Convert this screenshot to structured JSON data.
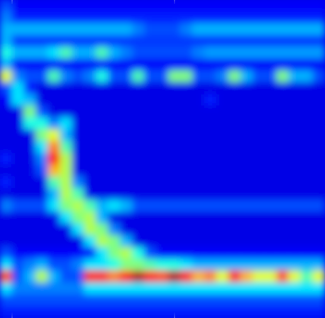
{
  "chart_data": {
    "type": "heatmap",
    "tick_labels": false,
    "xlim": [
      0,
      27
    ],
    "ylim": [
      0,
      27
    ],
    "color_range": [
      0,
      1
    ],
    "reference_lines": [
      1,
      14.5
    ],
    "cells": [
      [
        0.2,
        0.12,
        0.12,
        0.12,
        0.12,
        0.12,
        0.12,
        0.12,
        0.12,
        0.12,
        0.12,
        0.12,
        0.12,
        0.12,
        0.12,
        0.12,
        0.12,
        0.12,
        0.12,
        0.12,
        0.12,
        0.12,
        0.12,
        0.12,
        0.12,
        0.12,
        0.12
      ],
      [
        0.25,
        0.15,
        0.15,
        0.15,
        0.15,
        0.15,
        0.15,
        0.15,
        0.15,
        0.15,
        0.15,
        0.15,
        0.15,
        0.15,
        0.15,
        0.15,
        0.15,
        0.15,
        0.15,
        0.15,
        0.15,
        0.15,
        0.15,
        0.15,
        0.15,
        0.15,
        0.15
      ],
      [
        0.3,
        0.3,
        0.3,
        0.3,
        0.3,
        0.3,
        0.3,
        0.3,
        0.3,
        0.3,
        0.3,
        0.25,
        0.2,
        0.2,
        0.2,
        0.25,
        0.3,
        0.3,
        0.3,
        0.3,
        0.3,
        0.3,
        0.3,
        0.3,
        0.3,
        0.3,
        0.3
      ],
      [
        0.3,
        0.18,
        0.18,
        0.18,
        0.18,
        0.18,
        0.18,
        0.18,
        0.18,
        0.18,
        0.18,
        0.18,
        0.18,
        0.18,
        0.18,
        0.18,
        0.18,
        0.18,
        0.18,
        0.18,
        0.18,
        0.18,
        0.18,
        0.18,
        0.18,
        0.18,
        0.18
      ],
      [
        0.4,
        0.3,
        0.3,
        0.3,
        0.35,
        0.45,
        0.3,
        0.3,
        0.45,
        0.3,
        0.25,
        0.2,
        0.2,
        0.2,
        0.2,
        0.2,
        0.25,
        0.28,
        0.28,
        0.28,
        0.28,
        0.28,
        0.28,
        0.28,
        0.28,
        0.28,
        0.28
      ],
      [
        0.3,
        0.12,
        0.12,
        0.12,
        0.12,
        0.12,
        0.12,
        0.12,
        0.12,
        0.12,
        0.12,
        0.12,
        0.12,
        0.12,
        0.12,
        0.12,
        0.12,
        0.12,
        0.12,
        0.12,
        0.12,
        0.12,
        0.12,
        0.12,
        0.12,
        0.12,
        0.12
      ],
      [
        0.6,
        0.25,
        0.2,
        0.2,
        0.45,
        0.25,
        0.2,
        0.25,
        0.4,
        0.2,
        0.2,
        0.45,
        0.2,
        0.2,
        0.5,
        0.5,
        0.2,
        0.2,
        0.25,
        0.5,
        0.3,
        0.2,
        0.2,
        0.5,
        0.3,
        0.3,
        0.2
      ],
      [
        0.2,
        0.35,
        0.15,
        0.1,
        0.1,
        0.1,
        0.1,
        0.1,
        0.1,
        0.1,
        0.1,
        0.1,
        0.1,
        0.1,
        0.1,
        0.1,
        0.1,
        0.1,
        0.1,
        0.1,
        0.1,
        0.1,
        0.1,
        0.1,
        0.1,
        0.1,
        0.1
      ],
      [
        0.12,
        0.35,
        0.3,
        0.1,
        0.1,
        0.1,
        0.1,
        0.1,
        0.1,
        0.1,
        0.1,
        0.1,
        0.1,
        0.1,
        0.1,
        0.1,
        0.1,
        0.15,
        0.1,
        0.1,
        0.1,
        0.1,
        0.1,
        0.1,
        0.1,
        0.1,
        0.1
      ],
      [
        0.1,
        0.1,
        0.5,
        0.2,
        0.1,
        0.1,
        0.1,
        0.1,
        0.1,
        0.1,
        0.1,
        0.1,
        0.1,
        0.1,
        0.1,
        0.1,
        0.1,
        0.1,
        0.1,
        0.1,
        0.1,
        0.1,
        0.1,
        0.1,
        0.1,
        0.1,
        0.1
      ],
      [
        0.1,
        0.1,
        0.4,
        0.4,
        0.25,
        0.35,
        0.1,
        0.1,
        0.1,
        0.1,
        0.1,
        0.1,
        0.1,
        0.1,
        0.1,
        0.1,
        0.1,
        0.1,
        0.1,
        0.1,
        0.1,
        0.1,
        0.1,
        0.1,
        0.1,
        0.1,
        0.1
      ],
      [
        0.1,
        0.1,
        0.1,
        0.5,
        0.6,
        0.3,
        0.1,
        0.1,
        0.1,
        0.1,
        0.1,
        0.1,
        0.1,
        0.1,
        0.1,
        0.1,
        0.1,
        0.1,
        0.1,
        0.1,
        0.1,
        0.1,
        0.1,
        0.1,
        0.1,
        0.1,
        0.1
      ],
      [
        0.1,
        0.1,
        0.1,
        0.35,
        0.75,
        0.45,
        0.1,
        0.1,
        0.1,
        0.1,
        0.1,
        0.1,
        0.1,
        0.1,
        0.1,
        0.1,
        0.1,
        0.1,
        0.1,
        0.1,
        0.1,
        0.1,
        0.1,
        0.1,
        0.1,
        0.1,
        0.1
      ],
      [
        0.15,
        0.1,
        0.1,
        0.25,
        0.85,
        0.55,
        0.1,
        0.1,
        0.1,
        0.1,
        0.1,
        0.1,
        0.1,
        0.1,
        0.1,
        0.1,
        0.1,
        0.1,
        0.1,
        0.1,
        0.1,
        0.1,
        0.1,
        0.1,
        0.1,
        0.1,
        0.1
      ],
      [
        0.1,
        0.1,
        0.1,
        0.2,
        0.7,
        0.55,
        0.1,
        0.1,
        0.1,
        0.1,
        0.1,
        0.1,
        0.1,
        0.1,
        0.1,
        0.1,
        0.1,
        0.1,
        0.1,
        0.1,
        0.1,
        0.1,
        0.1,
        0.1,
        0.1,
        0.1,
        0.1
      ],
      [
        0.15,
        0.1,
        0.1,
        0.1,
        0.45,
        0.55,
        0.25,
        0.1,
        0.1,
        0.1,
        0.1,
        0.1,
        0.1,
        0.1,
        0.1,
        0.1,
        0.1,
        0.1,
        0.1,
        0.1,
        0.1,
        0.1,
        0.1,
        0.1,
        0.1,
        0.1,
        0.1
      ],
      [
        0.1,
        0.1,
        0.1,
        0.1,
        0.3,
        0.55,
        0.45,
        0.1,
        0.1,
        0.1,
        0.1,
        0.1,
        0.1,
        0.1,
        0.1,
        0.1,
        0.1,
        0.1,
        0.1,
        0.1,
        0.1,
        0.1,
        0.1,
        0.1,
        0.1,
        0.1,
        0.1
      ],
      [
        0.25,
        0.2,
        0.2,
        0.2,
        0.35,
        0.5,
        0.55,
        0.45,
        0.3,
        0.35,
        0.3,
        0.2,
        0.2,
        0.2,
        0.2,
        0.2,
        0.2,
        0.2,
        0.2,
        0.2,
        0.2,
        0.2,
        0.2,
        0.2,
        0.2,
        0.2,
        0.2
      ],
      [
        0.1,
        0.1,
        0.1,
        0.1,
        0.1,
        0.35,
        0.5,
        0.55,
        0.3,
        0.1,
        0.1,
        0.1,
        0.1,
        0.1,
        0.1,
        0.1,
        0.1,
        0.1,
        0.1,
        0.1,
        0.1,
        0.1,
        0.1,
        0.1,
        0.1,
        0.1,
        0.1
      ],
      [
        0.1,
        0.1,
        0.1,
        0.1,
        0.1,
        0.1,
        0.35,
        0.55,
        0.5,
        0.25,
        0.1,
        0.1,
        0.1,
        0.1,
        0.1,
        0.1,
        0.1,
        0.1,
        0.1,
        0.1,
        0.1,
        0.1,
        0.1,
        0.1,
        0.1,
        0.1,
        0.1
      ],
      [
        0.1,
        0.1,
        0.1,
        0.1,
        0.1,
        0.1,
        0.1,
        0.35,
        0.55,
        0.5,
        0.3,
        0.1,
        0.1,
        0.1,
        0.1,
        0.1,
        0.1,
        0.1,
        0.1,
        0.1,
        0.1,
        0.1,
        0.1,
        0.1,
        0.1,
        0.1,
        0.1
      ],
      [
        0.2,
        0.12,
        0.12,
        0.12,
        0.12,
        0.12,
        0.12,
        0.12,
        0.35,
        0.5,
        0.55,
        0.4,
        0.2,
        0.12,
        0.12,
        0.12,
        0.12,
        0.12,
        0.12,
        0.12,
        0.12,
        0.12,
        0.12,
        0.12,
        0.12,
        0.12,
        0.12
      ],
      [
        0.35,
        0.2,
        0.25,
        0.3,
        0.2,
        0.2,
        0.25,
        0.35,
        0.35,
        0.4,
        0.5,
        0.5,
        0.45,
        0.4,
        0.4,
        0.35,
        0.3,
        0.3,
        0.3,
        0.3,
        0.3,
        0.3,
        0.3,
        0.3,
        0.3,
        0.3,
        0.3
      ],
      [
        0.8,
        0.2,
        0.3,
        0.55,
        0.3,
        0.2,
        0.2,
        0.85,
        0.85,
        0.75,
        0.85,
        0.95,
        0.85,
        0.8,
        0.95,
        0.85,
        0.7,
        0.75,
        0.6,
        0.85,
        0.7,
        0.6,
        0.6,
        0.8,
        0.6,
        0.45,
        0.6
      ],
      [
        0.35,
        0.25,
        0.25,
        0.25,
        0.25,
        0.25,
        0.25,
        0.35,
        0.35,
        0.35,
        0.35,
        0.35,
        0.35,
        0.35,
        0.35,
        0.35,
        0.35,
        0.35,
        0.35,
        0.35,
        0.35,
        0.35,
        0.35,
        0.35,
        0.35,
        0.35,
        0.35
      ],
      [
        0.2,
        0.2,
        0.2,
        0.2,
        0.2,
        0.2,
        0.2,
        0.2,
        0.2,
        0.2,
        0.2,
        0.2,
        0.2,
        0.2,
        0.2,
        0.2,
        0.2,
        0.2,
        0.2,
        0.2,
        0.2,
        0.2,
        0.2,
        0.2,
        0.2,
        0.2,
        0.2
      ],
      [
        0.15,
        0.15,
        0.15,
        0.15,
        0.15,
        0.15,
        0.15,
        0.15,
        0.15,
        0.15,
        0.15,
        0.15,
        0.15,
        0.15,
        0.15,
        0.15,
        0.15,
        0.15,
        0.15,
        0.15,
        0.15,
        0.15,
        0.15,
        0.15,
        0.15,
        0.15,
        0.15
      ]
    ]
  }
}
